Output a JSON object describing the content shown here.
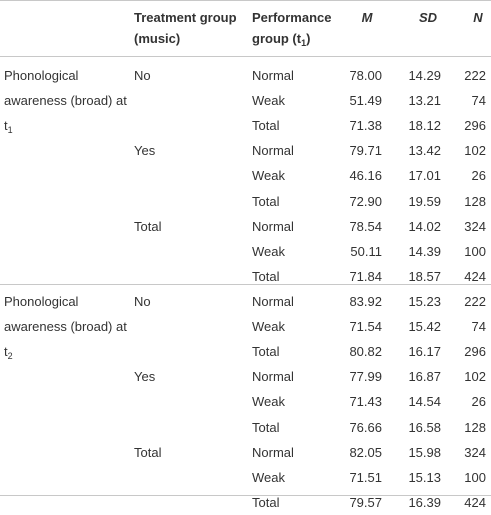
{
  "header": {
    "treatment": "Treatment group (music)",
    "performance": {
      "text": "Performance group (t",
      "sub": "1",
      "after": ")"
    },
    "m": "M",
    "sd": "SD",
    "n": "N"
  },
  "sections": [
    {
      "label": {
        "text": "Phonological awareness (broad) at t",
        "sub": "1"
      },
      "groups": [
        {
          "treatment": "No",
          "rows": [
            [
              "Normal",
              "78.00",
              "14.29",
              "222"
            ],
            [
              "Weak",
              "51.49",
              "13.21",
              "74"
            ],
            [
              "Total",
              "71.38",
              "18.12",
              "296"
            ]
          ]
        },
        {
          "treatment": "Yes",
          "rows": [
            [
              "Normal",
              "79.71",
              "13.42",
              "102"
            ],
            [
              "Weak",
              "46.16",
              "17.01",
              "26"
            ],
            [
              "Total",
              "72.90",
              "19.59",
              "128"
            ]
          ]
        },
        {
          "treatment": "Total",
          "rows": [
            [
              "Normal",
              "78.54",
              "14.02",
              "324"
            ],
            [
              "Weak",
              "50.11",
              "14.39",
              "100"
            ],
            [
              "Total",
              "71.84",
              "18.57",
              "424"
            ]
          ]
        }
      ]
    },
    {
      "label": {
        "text": "Phonological awareness (broad) at t",
        "sub": "2"
      },
      "groups": [
        {
          "treatment": "No",
          "rows": [
            [
              "Normal",
              "83.92",
              "15.23",
              "222"
            ],
            [
              "Weak",
              "71.54",
              "15.42",
              "74"
            ],
            [
              "Total",
              "80.82",
              "16.17",
              "296"
            ]
          ]
        },
        {
          "treatment": "Yes",
          "rows": [
            [
              "Normal",
              "77.99",
              "16.87",
              "102"
            ],
            [
              "Weak",
              "71.43",
              "14.54",
              "26"
            ],
            [
              "Total",
              "76.66",
              "16.58",
              "128"
            ]
          ]
        },
        {
          "treatment": "Total",
          "rows": [
            [
              "Normal",
              "82.05",
              "15.98",
              "324"
            ],
            [
              "Weak",
              "71.51",
              "15.13",
              "100"
            ],
            [
              "Total",
              "79.57",
              "16.39",
              "424"
            ]
          ]
        }
      ]
    }
  ]
}
